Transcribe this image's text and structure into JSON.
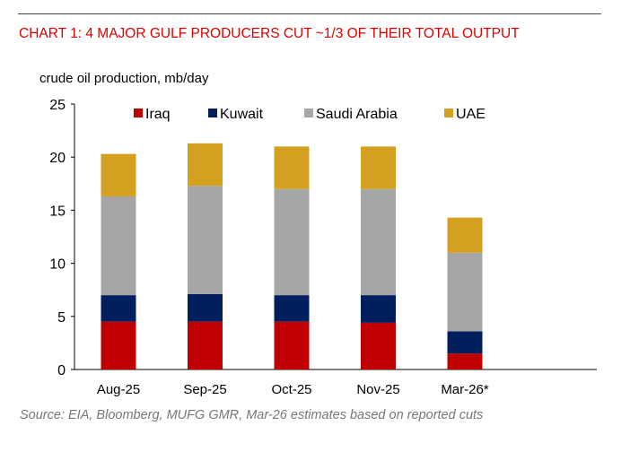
{
  "chart_data": {
    "type": "bar",
    "stacked": true,
    "title": "CHART 1: 4 MAJOR GULF PRODUCERS CUT ~1/3 OF THEIR TOTAL OUTPUT",
    "ylabel": "crude oil production, mb/day",
    "xlabel": "",
    "ylim": [
      0,
      25
    ],
    "yticks": [
      0,
      5,
      10,
      15,
      20,
      25
    ],
    "grid": false,
    "legend": "top",
    "categories": [
      "Aug-25",
      "Sep-25",
      "Oct-25",
      "Nov-25",
      "Mar-26*"
    ],
    "series": [
      {
        "name": "Iraq",
        "color": "#c00000",
        "values": [
          4.5,
          4.5,
          4.5,
          4.4,
          1.5
        ]
      },
      {
        "name": "Kuwait",
        "color": "#001f5c",
        "values": [
          2.5,
          2.6,
          2.5,
          2.6,
          2.1
        ]
      },
      {
        "name": "Saudi Arabia",
        "color": "#a6a6a6",
        "values": [
          9.3,
          10.2,
          10.0,
          10.0,
          7.4
        ]
      },
      {
        "name": "UAE",
        "color": "#d4a020",
        "values": [
          4.0,
          4.0,
          4.0,
          4.0,
          3.3
        ]
      }
    ],
    "source": "Source: EIA, Bloomberg, MUFG GMR, Mar-26 estimates based on reported cuts"
  }
}
